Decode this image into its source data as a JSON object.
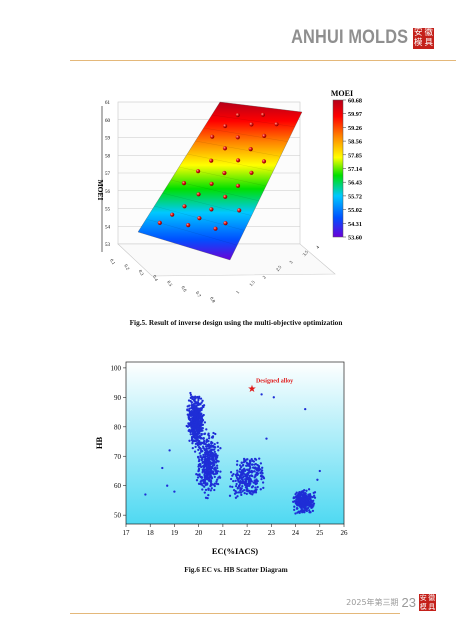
{
  "header": {
    "brand": "ANHUI MOLDS",
    "seal_chars": [
      "安",
      "徽",
      "模",
      "具"
    ]
  },
  "footer": {
    "issue": "2025年第三期",
    "page_number": "23"
  },
  "figure5": {
    "caption": "Fig.5. Result of inverse design using the multi-objective optimization"
  },
  "figure6": {
    "caption": "Fig.6 EC vs. HB Scatter Diagram",
    "annotation": "Designed alloy"
  },
  "chart_data": [
    {
      "type": "surface3d",
      "zlabel": "MOEI",
      "zlim": [
        53,
        61
      ],
      "z_ticks": [
        "53",
        "54",
        "55",
        "56",
        "57",
        "58",
        "59",
        "60",
        "61"
      ],
      "x_ticks": [
        "0.1",
        "0.2",
        "0.3",
        "0.4",
        "0.5",
        "0.6",
        "0.7",
        "0.8"
      ],
      "y_ticks": [
        "1",
        "1.5",
        "2",
        "2.5",
        "3",
        "3.5",
        "4"
      ],
      "colorbar": {
        "title": "MOEI",
        "ticks": [
          "60.68",
          "59.97",
          "59.26",
          "58.56",
          "57.85",
          "57.14",
          "56.43",
          "55.72",
          "55.02",
          "54.31",
          "53.60"
        ],
        "colors": [
          "#b5001a",
          "#ff0000",
          "#ff8000",
          "#ffff00",
          "#00e000",
          "#00c8ff",
          "#0050ff",
          "#6a00d8"
        ]
      },
      "points": [
        {
          "z": 53.8
        },
        {
          "z": 54.1
        },
        {
          "z": 54.3
        },
        {
          "z": 54.4
        },
        {
          "z": 54.6
        },
        {
          "z": 54.7
        },
        {
          "z": 55.0
        },
        {
          "z": 55.2
        },
        {
          "z": 55.5
        },
        {
          "z": 55.8
        },
        {
          "z": 56.0
        },
        {
          "z": 56.2
        },
        {
          "z": 56.5
        },
        {
          "z": 56.7
        },
        {
          "z": 57.0
        },
        {
          "z": 57.2
        },
        {
          "z": 57.5
        },
        {
          "z": 57.7
        },
        {
          "z": 58.0
        },
        {
          "z": 58.2
        },
        {
          "z": 58.5
        },
        {
          "z": 58.7
        },
        {
          "z": 59.0
        },
        {
          "z": 59.2
        },
        {
          "z": 59.5
        },
        {
          "z": 59.7
        },
        {
          "z": 60.0
        },
        {
          "z": 60.2
        },
        {
          "z": 60.4
        },
        {
          "z": 60.6
        }
      ]
    },
    {
      "type": "scatter",
      "xlabel": "EC(%IACS)",
      "ylabel": "HB",
      "xlim": [
        17,
        26
      ],
      "ylim": [
        47,
        102
      ],
      "x_ticks": [
        "17",
        "18",
        "19",
        "20",
        "21",
        "22",
        "23",
        "24",
        "25",
        "26"
      ],
      "y_ticks": [
        "50",
        "60",
        "70",
        "80",
        "90",
        "100"
      ],
      "point_color": "#1f2ed6",
      "marker_color": "#e01818",
      "clusters": [
        {
          "x": [
            19.3,
            20.3
          ],
          "y": [
            72,
            92
          ],
          "n": 520
        },
        {
          "x": [
            19.6,
            21.0
          ],
          "y": [
            55,
            80
          ],
          "n": 420
        },
        {
          "x": [
            20.8,
            22.8
          ],
          "y": [
            55,
            70
          ],
          "n": 230
        },
        {
          "x": [
            21.5,
            23.0
          ],
          "y": [
            58,
            72
          ],
          "n": 60
        },
        {
          "x": [
            23.6,
            24.9
          ],
          "y": [
            50,
            59
          ],
          "n": 320
        }
      ],
      "outliers": [
        {
          "x": 17.8,
          "y": 57
        },
        {
          "x": 18.5,
          "y": 66
        },
        {
          "x": 18.8,
          "y": 72
        },
        {
          "x": 19.0,
          "y": 58
        },
        {
          "x": 22.6,
          "y": 91
        },
        {
          "x": 23.1,
          "y": 90
        },
        {
          "x": 24.4,
          "y": 86
        },
        {
          "x": 25.0,
          "y": 65
        },
        {
          "x": 24.9,
          "y": 62
        },
        {
          "x": 22.8,
          "y": 76
        },
        {
          "x": 18.7,
          "y": 60
        }
      ],
      "designed": {
        "x": 22.2,
        "y": 93
      }
    }
  ]
}
